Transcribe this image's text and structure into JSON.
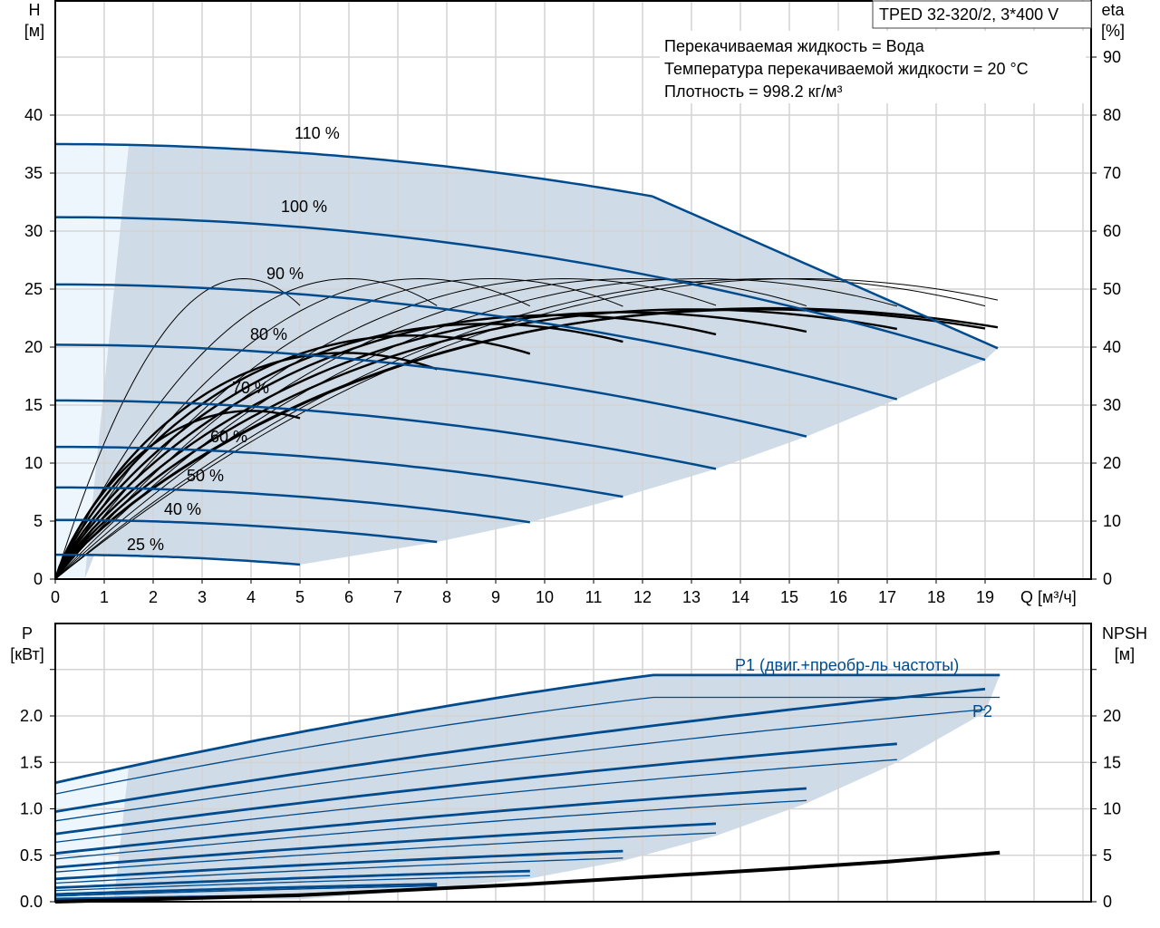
{
  "chart_data": [
    {
      "type": "line",
      "title": "TPED 32-320/2, 3*400 V",
      "info": [
        "Перекачиваемая жидкость = Вода",
        "Температура перекачиваемой жидкости = 20 °C",
        "Плотность = 998.2 кг/м³"
      ],
      "xlabel": "Q [м³/ч]",
      "ylabel": [
        "H",
        "[м]"
      ],
      "y2label": [
        "eta",
        "[%]"
      ],
      "xlim": [
        0,
        21.2
      ],
      "ylim": [
        0,
        50
      ],
      "y2lim": [
        0,
        100
      ],
      "xticks": [
        "0",
        "1",
        "2",
        "3",
        "4",
        "5",
        "6",
        "7",
        "8",
        "9",
        "10",
        "11",
        "12",
        "13",
        "14",
        "15",
        "16",
        "17",
        "18",
        "19"
      ],
      "yticks": [
        "0",
        "5",
        "10",
        "15",
        "20",
        "25",
        "30",
        "35",
        "40"
      ],
      "y2ticks": [
        "0",
        "10",
        "20",
        "30",
        "40",
        "50",
        "60",
        "70",
        "80",
        "90"
      ],
      "grid": true,
      "colors": {
        "curve": "#004b8d",
        "region": "#cfdbe7",
        "region_light": "#eef6fd",
        "eta": "#000000"
      },
      "head_curves": [
        {
          "label": "110 %",
          "speed": 1.1,
          "h0": 37.5,
          "q_end": 12.2,
          "h_end": 33.0
        },
        {
          "label": "100 %",
          "speed": 1.0,
          "h0": 31.2,
          "q_end": 19.0,
          "h_end": 18.9
        },
        {
          "label": "90 %",
          "speed": 0.9,
          "h0": 25.4,
          "q_end": 17.2,
          "h_end": 15.5
        },
        {
          "label": "80 %",
          "speed": 0.8,
          "h0": 20.2,
          "q_end": 15.35,
          "h_end": 12.3
        },
        {
          "label": "70 %",
          "speed": 0.7,
          "h0": 15.4,
          "q_end": 13.5,
          "h_end": 9.5
        },
        {
          "label": "60 %",
          "speed": 0.6,
          "h0": 11.4,
          "q_end": 11.6,
          "h_end": 7.1
        },
        {
          "label": "50 %",
          "speed": 0.5,
          "h0": 7.9,
          "q_end": 9.7,
          "h_end": 4.9
        },
        {
          "label": "40 %",
          "speed": 0.4,
          "h0": 5.1,
          "q_end": 7.8,
          "h_end": 3.2
        },
        {
          "label": "25 %",
          "speed": 0.25,
          "h0": 2.1,
          "q_end": 5.0,
          "h_end": 1.25
        }
      ],
      "max_power_limit": [
        [
          12.2,
          33.0
        ],
        [
          19.26,
          19.9
        ]
      ],
      "eta_hydraulic": [
        {
          "q_bep": 3.85,
          "peak": 51.8,
          "q_end": 5.0
        },
        {
          "q_bep": 6.0,
          "peak": 51.8,
          "q_end": 7.8
        },
        {
          "q_bep": 7.45,
          "peak": 51.8,
          "q_end": 9.7
        },
        {
          "q_bep": 8.9,
          "peak": 51.8,
          "q_end": 11.6
        },
        {
          "q_bep": 10.4,
          "peak": 51.8,
          "q_end": 13.5
        },
        {
          "q_bep": 11.8,
          "peak": 51.8,
          "q_end": 15.35
        },
        {
          "q_bep": 13.2,
          "peak": 51.8,
          "q_end": 17.2
        },
        {
          "q_bep": 14.6,
          "peak": 51.8,
          "q_end": 19.0
        },
        {
          "q_bep": 15.2,
          "peak": 51.8,
          "q_end": 19.26
        }
      ],
      "eta_total": [
        {
          "q_bep": 4.0,
          "peak": 29.0,
          "q_end": 5.0
        },
        {
          "q_bep": 5.9,
          "peak": 39.0,
          "q_end": 7.8
        },
        {
          "q_bep": 7.3,
          "peak": 42.0,
          "q_end": 9.7
        },
        {
          "q_bep": 8.8,
          "peak": 44.0,
          "q_end": 11.6
        },
        {
          "q_bep": 10.2,
          "peak": 45.5,
          "q_end": 13.5
        },
        {
          "q_bep": 11.6,
          "peak": 46.0,
          "q_end": 15.35
        },
        {
          "q_bep": 13.0,
          "peak": 46.5,
          "q_end": 17.2
        },
        {
          "q_bep": 14.4,
          "peak": 46.5,
          "q_end": 19.0
        },
        {
          "q_bep": 14.6,
          "peak": 46.7,
          "q_end": 19.26
        }
      ]
    },
    {
      "type": "line",
      "xlabel": "Q [м³/ч]",
      "ylabel": [
        "P",
        "[кВт]"
      ],
      "y2label": [
        "NPSH",
        "[м]"
      ],
      "xlim": [
        0,
        21.2
      ],
      "ylim": [
        0,
        3.0
      ],
      "y2lim": [
        0,
        30
      ],
      "yticks": [
        "0.0",
        "0.5",
        "1.0",
        "1.5",
        "2.0"
      ],
      "y2ticks": [
        "0",
        "5",
        "10",
        "15",
        "20"
      ],
      "grid": true,
      "p1_label": "P1 (двиг.+преобр-ль частоты)",
      "p2_label": "P2",
      "power_curves": [
        {
          "speed": 1.1,
          "p1": [
            [
              0,
              1.28
            ],
            [
              12.2,
              2.44
            ],
            [
              19.3,
              2.44
            ]
          ],
          "p2": [
            [
              0,
              1.16
            ],
            [
              12.2,
              2.2
            ],
            [
              19.3,
              2.2
            ]
          ]
        },
        {
          "speed": 1.0,
          "p1": [
            [
              0,
              0.97
            ],
            [
              19.0,
              2.29
            ]
          ],
          "p2": [
            [
              0,
              0.87
            ],
            [
              19.0,
              2.07
            ]
          ]
        },
        {
          "speed": 0.9,
          "p1": [
            [
              0,
              0.73
            ],
            [
              17.2,
              1.7
            ]
          ],
          "p2": [
            [
              0,
              0.64
            ],
            [
              17.2,
              1.53
            ]
          ]
        },
        {
          "speed": 0.8,
          "p1": [
            [
              0,
              0.52
            ],
            [
              15.35,
              1.22
            ]
          ],
          "p2": [
            [
              0,
              0.46
            ],
            [
              15.35,
              1.09
            ]
          ]
        },
        {
          "speed": 0.7,
          "p1": [
            [
              0,
              0.37
            ],
            [
              13.5,
              0.84
            ]
          ],
          "p2": [
            [
              0,
              0.32
            ],
            [
              13.5,
              0.74
            ]
          ]
        },
        {
          "speed": 0.6,
          "p1": [
            [
              0,
              0.245
            ],
            [
              11.6,
              0.545
            ]
          ],
          "p2": [
            [
              0,
              0.2
            ],
            [
              11.6,
              0.47
            ]
          ]
        },
        {
          "speed": 0.5,
          "p1": [
            [
              0,
              0.15
            ],
            [
              9.7,
              0.33
            ]
          ],
          "p2": [
            [
              0,
              0.12
            ],
            [
              9.7,
              0.28
            ]
          ]
        },
        {
          "speed": 0.4,
          "p1": [
            [
              0,
              0.08
            ],
            [
              7.8,
              0.19
            ]
          ],
          "p2": [
            [
              0,
              0.06
            ],
            [
              7.8,
              0.17
            ]
          ]
        },
        {
          "speed": 0.25,
          "p1": [
            [
              0,
              0.03
            ],
            [
              5.0,
              0.065
            ]
          ],
          "p2": [
            [
              0,
              0.02
            ],
            [
              5.0,
              0.055
            ]
          ]
        }
      ],
      "npsh": [
        [
          0,
          0
        ],
        [
          5,
          0.7
        ],
        [
          9.7,
          1.9
        ],
        [
          12.2,
          2.7
        ],
        [
          15,
          3.6
        ],
        [
          17,
          4.3
        ],
        [
          19.3,
          5.3
        ]
      ]
    }
  ]
}
